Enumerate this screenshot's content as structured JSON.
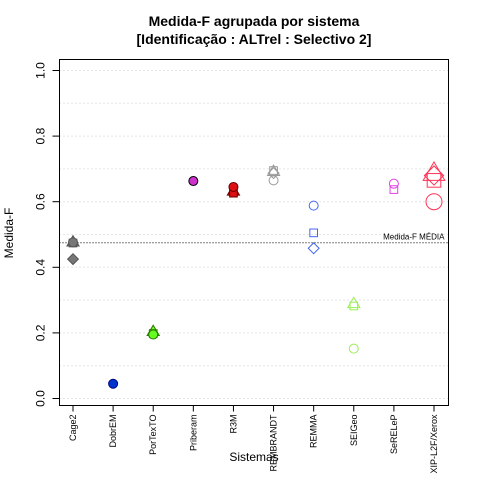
{
  "chart_data": {
    "type": "scatter",
    "title": [
      "Medida-F agrupada por sistema",
      "[Identificação : ALTrel : Selectivo 2]"
    ],
    "xlabel": "Sistemas",
    "ylabel": "Medida-F",
    "ylim": [
      0,
      1
    ],
    "yticks": [
      "0.0",
      "0.2",
      "0.4",
      "0.6",
      "0.8",
      "1.0"
    ],
    "grid": "horizontal dotted",
    "categories": [
      "Cage2",
      "DobrEM",
      "PorTexTO",
      "Priberam",
      "R3M",
      "REMBRANDT",
      "REMMA",
      "SEIGeo",
      "SeRELeP",
      "XIP-L2F/Xerox"
    ],
    "reference_line": {
      "label": "Medida-F MÉDIA",
      "value": 0.475
    },
    "series": [
      {
        "category": "Cage2",
        "color": "#555555",
        "fill": "#777777",
        "points": [
          {
            "shape": "circle",
            "value": 0.476
          },
          {
            "shape": "square",
            "value": 0.474
          },
          {
            "shape": "triangle",
            "value": 0.478
          },
          {
            "shape": "diamond",
            "value": 0.425
          }
        ]
      },
      {
        "category": "DobrEM",
        "color": "#000080",
        "fill": "#0033cc",
        "points": [
          {
            "shape": "circle",
            "value": 0.045
          }
        ]
      },
      {
        "category": "PorTexTO",
        "color": "#2a7a00",
        "fill": "#66ff22",
        "points": [
          {
            "shape": "circle",
            "value": 0.195
          },
          {
            "shape": "square",
            "value": 0.198
          },
          {
            "shape": "triangle",
            "value": 0.205
          }
        ]
      },
      {
        "category": "Priberam",
        "color": "#000000",
        "fill": "#cc33cc",
        "points": [
          {
            "shape": "circle",
            "value": 0.663
          }
        ]
      },
      {
        "category": "R3M",
        "color": "#660000",
        "fill": "#dd1111",
        "points": [
          {
            "shape": "circle",
            "value": 0.645
          },
          {
            "shape": "square",
            "value": 0.626
          },
          {
            "shape": "triangle",
            "value": 0.633
          }
        ]
      },
      {
        "category": "REMBRANDT",
        "color": "#999999",
        "fill": "none",
        "points": [
          {
            "shape": "circle",
            "value": 0.665
          },
          {
            "shape": "square",
            "value": 0.695
          },
          {
            "shape": "triangle",
            "value": 0.693
          },
          {
            "shape": "diamond",
            "value": 0.687
          }
        ]
      },
      {
        "category": "REMMA",
        "color": "#4466ee",
        "fill": "none",
        "points": [
          {
            "shape": "circle",
            "value": 0.588
          },
          {
            "shape": "square",
            "value": 0.505
          },
          {
            "shape": "diamond",
            "value": 0.458
          }
        ]
      },
      {
        "category": "SEIGeo",
        "color": "#99ee55",
        "fill": "none",
        "points": [
          {
            "shape": "circle",
            "value": 0.152
          },
          {
            "shape": "square",
            "value": 0.282
          },
          {
            "shape": "triangle",
            "value": 0.29
          }
        ]
      },
      {
        "category": "SeRELeP",
        "color": "#dd44dd",
        "fill": "none",
        "points": [
          {
            "shape": "circle",
            "value": 0.655
          },
          {
            "shape": "square",
            "value": 0.637
          }
        ]
      },
      {
        "category": "XIP-L2F/Xerox",
        "color": "#ff3355",
        "fill": "none",
        "points": [
          {
            "shape": "circle",
            "value": 0.6,
            "size": "large"
          },
          {
            "shape": "square",
            "value": 0.665,
            "size": "large"
          },
          {
            "shape": "triangle",
            "value": 0.688,
            "size": "large"
          },
          {
            "shape": "diamond",
            "value": 0.68,
            "size": "large"
          }
        ]
      }
    ]
  }
}
